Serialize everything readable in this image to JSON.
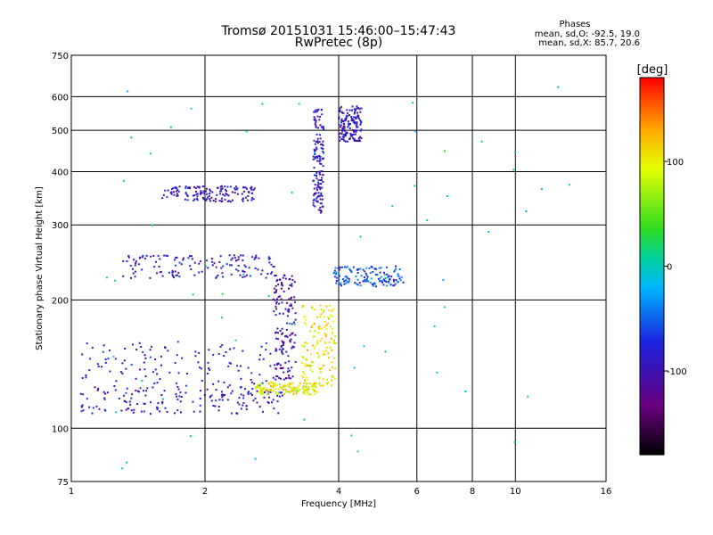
{
  "header": {
    "title": "Tromsø 20151031 15:46:00–15:47:43",
    "subtitle": "RwPretec (8p)"
  },
  "stats": {
    "heading": "Phases",
    "line_o": "mean, sd,O: -92.5, 19.0",
    "line_x": "mean, sd,X:  85.7, 20.6"
  },
  "chart_data": {
    "type": "scatter",
    "xlabel": "Frequency [MHz]",
    "ylabel": "Stationary phase Virtual Height [km]",
    "x_scale": "log",
    "y_scale": "log",
    "xlim": [
      1,
      16
    ],
    "ylim": [
      75,
      750
    ],
    "x_ticks": [
      1,
      2,
      4,
      6,
      8,
      10,
      16
    ],
    "y_ticks": [
      75,
      100,
      200,
      300,
      400,
      500,
      600,
      750
    ],
    "grid": true,
    "colorbar": {
      "label": "[deg]",
      "range": [
        -180,
        180
      ],
      "ticks": [
        -100,
        0,
        100
      ],
      "colormap": "rainbow: black → purple → blue → cyan → green → yellow → orange → red"
    },
    "traces": [
      {
        "description": "low O-mode band",
        "x_range": [
          1.05,
          3.0
        ],
        "y_range": [
          108,
          125
        ],
        "phase": -95
      },
      {
        "description": "scattered blue points above low band",
        "x_range": [
          1.05,
          3.0
        ],
        "y_range": [
          120,
          160
        ],
        "phase": -90
      },
      {
        "description": "X-mode low band",
        "x_range": [
          2.6,
          3.6
        ],
        "y_range": [
          120,
          128
        ],
        "phase": 100
      },
      {
        "description": "vertical spread near 3 MHz",
        "x_range": [
          2.85,
          3.2
        ],
        "y_range": [
          130,
          230
        ],
        "phase": -105
      },
      {
        "description": "yellow rising trace",
        "x_range": [
          3.3,
          3.95
        ],
        "y_range": [
          125,
          195
        ],
        "phase": 105
      },
      {
        "description": "E-layer trace 230 km",
        "x_range": [
          1.3,
          2.9
        ],
        "y_range": [
          225,
          255
        ],
        "phase": -95
      },
      {
        "description": "trace ~350 km",
        "x_range": [
          1.6,
          2.6
        ],
        "y_range": [
          340,
          370
        ],
        "phase": -95
      },
      {
        "description": "cyan band near 4-5.5 MHz",
        "x_range": [
          3.9,
          5.6
        ],
        "y_range": [
          215,
          240
        ],
        "phase": -60
      },
      {
        "description": "vertical near 3.6 MHz",
        "x_range": [
          3.5,
          3.7
        ],
        "y_range": [
          320,
          560
        ],
        "phase": -95
      },
      {
        "description": "steep 4.3-4.5 MHz",
        "x_range": [
          4.0,
          4.5
        ],
        "y_range": [
          470,
          570
        ],
        "phase": -95
      },
      {
        "description": "sparse high points",
        "x_range": [
          1.2,
          14
        ],
        "y_range": [
          80,
          650
        ],
        "phase": 0
      }
    ]
  }
}
